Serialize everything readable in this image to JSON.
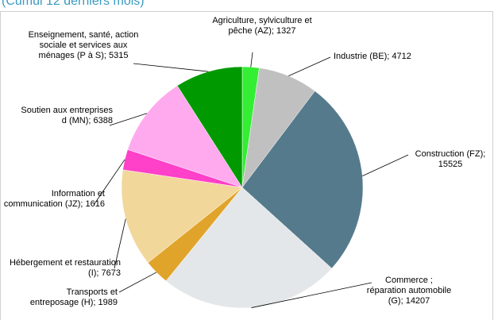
{
  "chart_data": {
    "type": "pie",
    "title": "(Cumul 12 derniers mois)",
    "values": [
      1327,
      4712,
      15525,
      14207,
      1989,
      7673,
      1616,
      6388,
      5315
    ],
    "value_labels": [
      "Agriculture, sylviculture et pêche (AZ); 1327",
      "Industrie (BE); 4712",
      "Construction (FZ); 15525",
      "Commerce ; réparation automobile (G); 14207",
      "Transports et entreposage (H); 1989",
      "Hébergement et restauration (I); 7673",
      "Information et communication (JZ); 1616",
      "Soutien aux entreprises d (MN); 6388",
      "Enseignement, santé, action sociale et services aux ménages (P à S); 5315"
    ],
    "colors": [
      "#33ee33",
      "#c0c0c0",
      "#557a8c",
      "#e3e7e9",
      "#e0a42a",
      "#f2d79a",
      "#ff40c8",
      "#ffaaee",
      "#009a00"
    ]
  }
}
